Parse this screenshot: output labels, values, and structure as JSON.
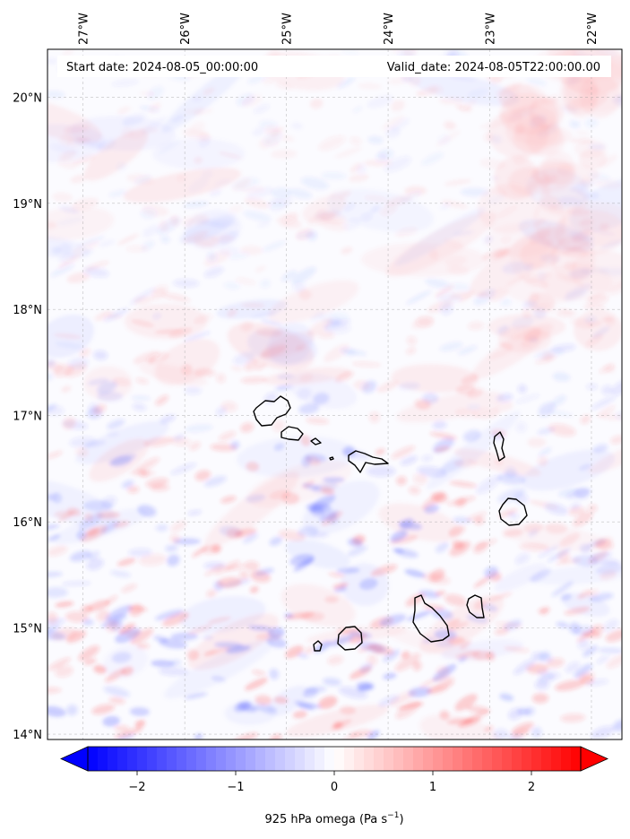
{
  "map": {
    "header_left": "Start date: 2024-08-05_00:00:00",
    "header_right": "Valid_date: 2024-08-05T22:00:00.00",
    "lon_ticks": [
      "27°W",
      "26°W",
      "25°W",
      "24°W",
      "23°W",
      "22°W"
    ],
    "lat_ticks": [
      "20°N",
      "19°N",
      "18°N",
      "17°N",
      "16°N",
      "15°N",
      "14°N"
    ],
    "lon_values": [
      -27,
      -26,
      -25,
      -24,
      -23,
      -22
    ],
    "lat_values": [
      20,
      19,
      18,
      17,
      16,
      15,
      14
    ],
    "extent": {
      "lon_min": -27.35,
      "lon_max": -21.7,
      "lat_min": 13.95,
      "lat_max": 20.45
    },
    "gridlines": true,
    "field": "925 hPa omega",
    "colormap": "bwr",
    "colors": {
      "negative": "#0000ff",
      "neutral": "#ffffff",
      "positive": "#ff0000",
      "coastline": "#000000"
    },
    "islands": [
      "Santo Antão",
      "São Vicente",
      "Santa Luzia",
      "São Nicolau",
      "Sal",
      "Boa Vista",
      "Maio",
      "Santiago",
      "Fogo",
      "Brava"
    ]
  },
  "colorbar": {
    "label": "925 hPa omega (Pa s",
    "label_sup": "−1",
    "label_end": ")",
    "ticks": [
      "−2",
      "−1",
      "0",
      "1",
      "2"
    ],
    "tick_values": [
      -2,
      -1,
      0,
      1,
      2
    ],
    "vmin": -2.5,
    "vmax": 2.5,
    "extend": "both"
  }
}
